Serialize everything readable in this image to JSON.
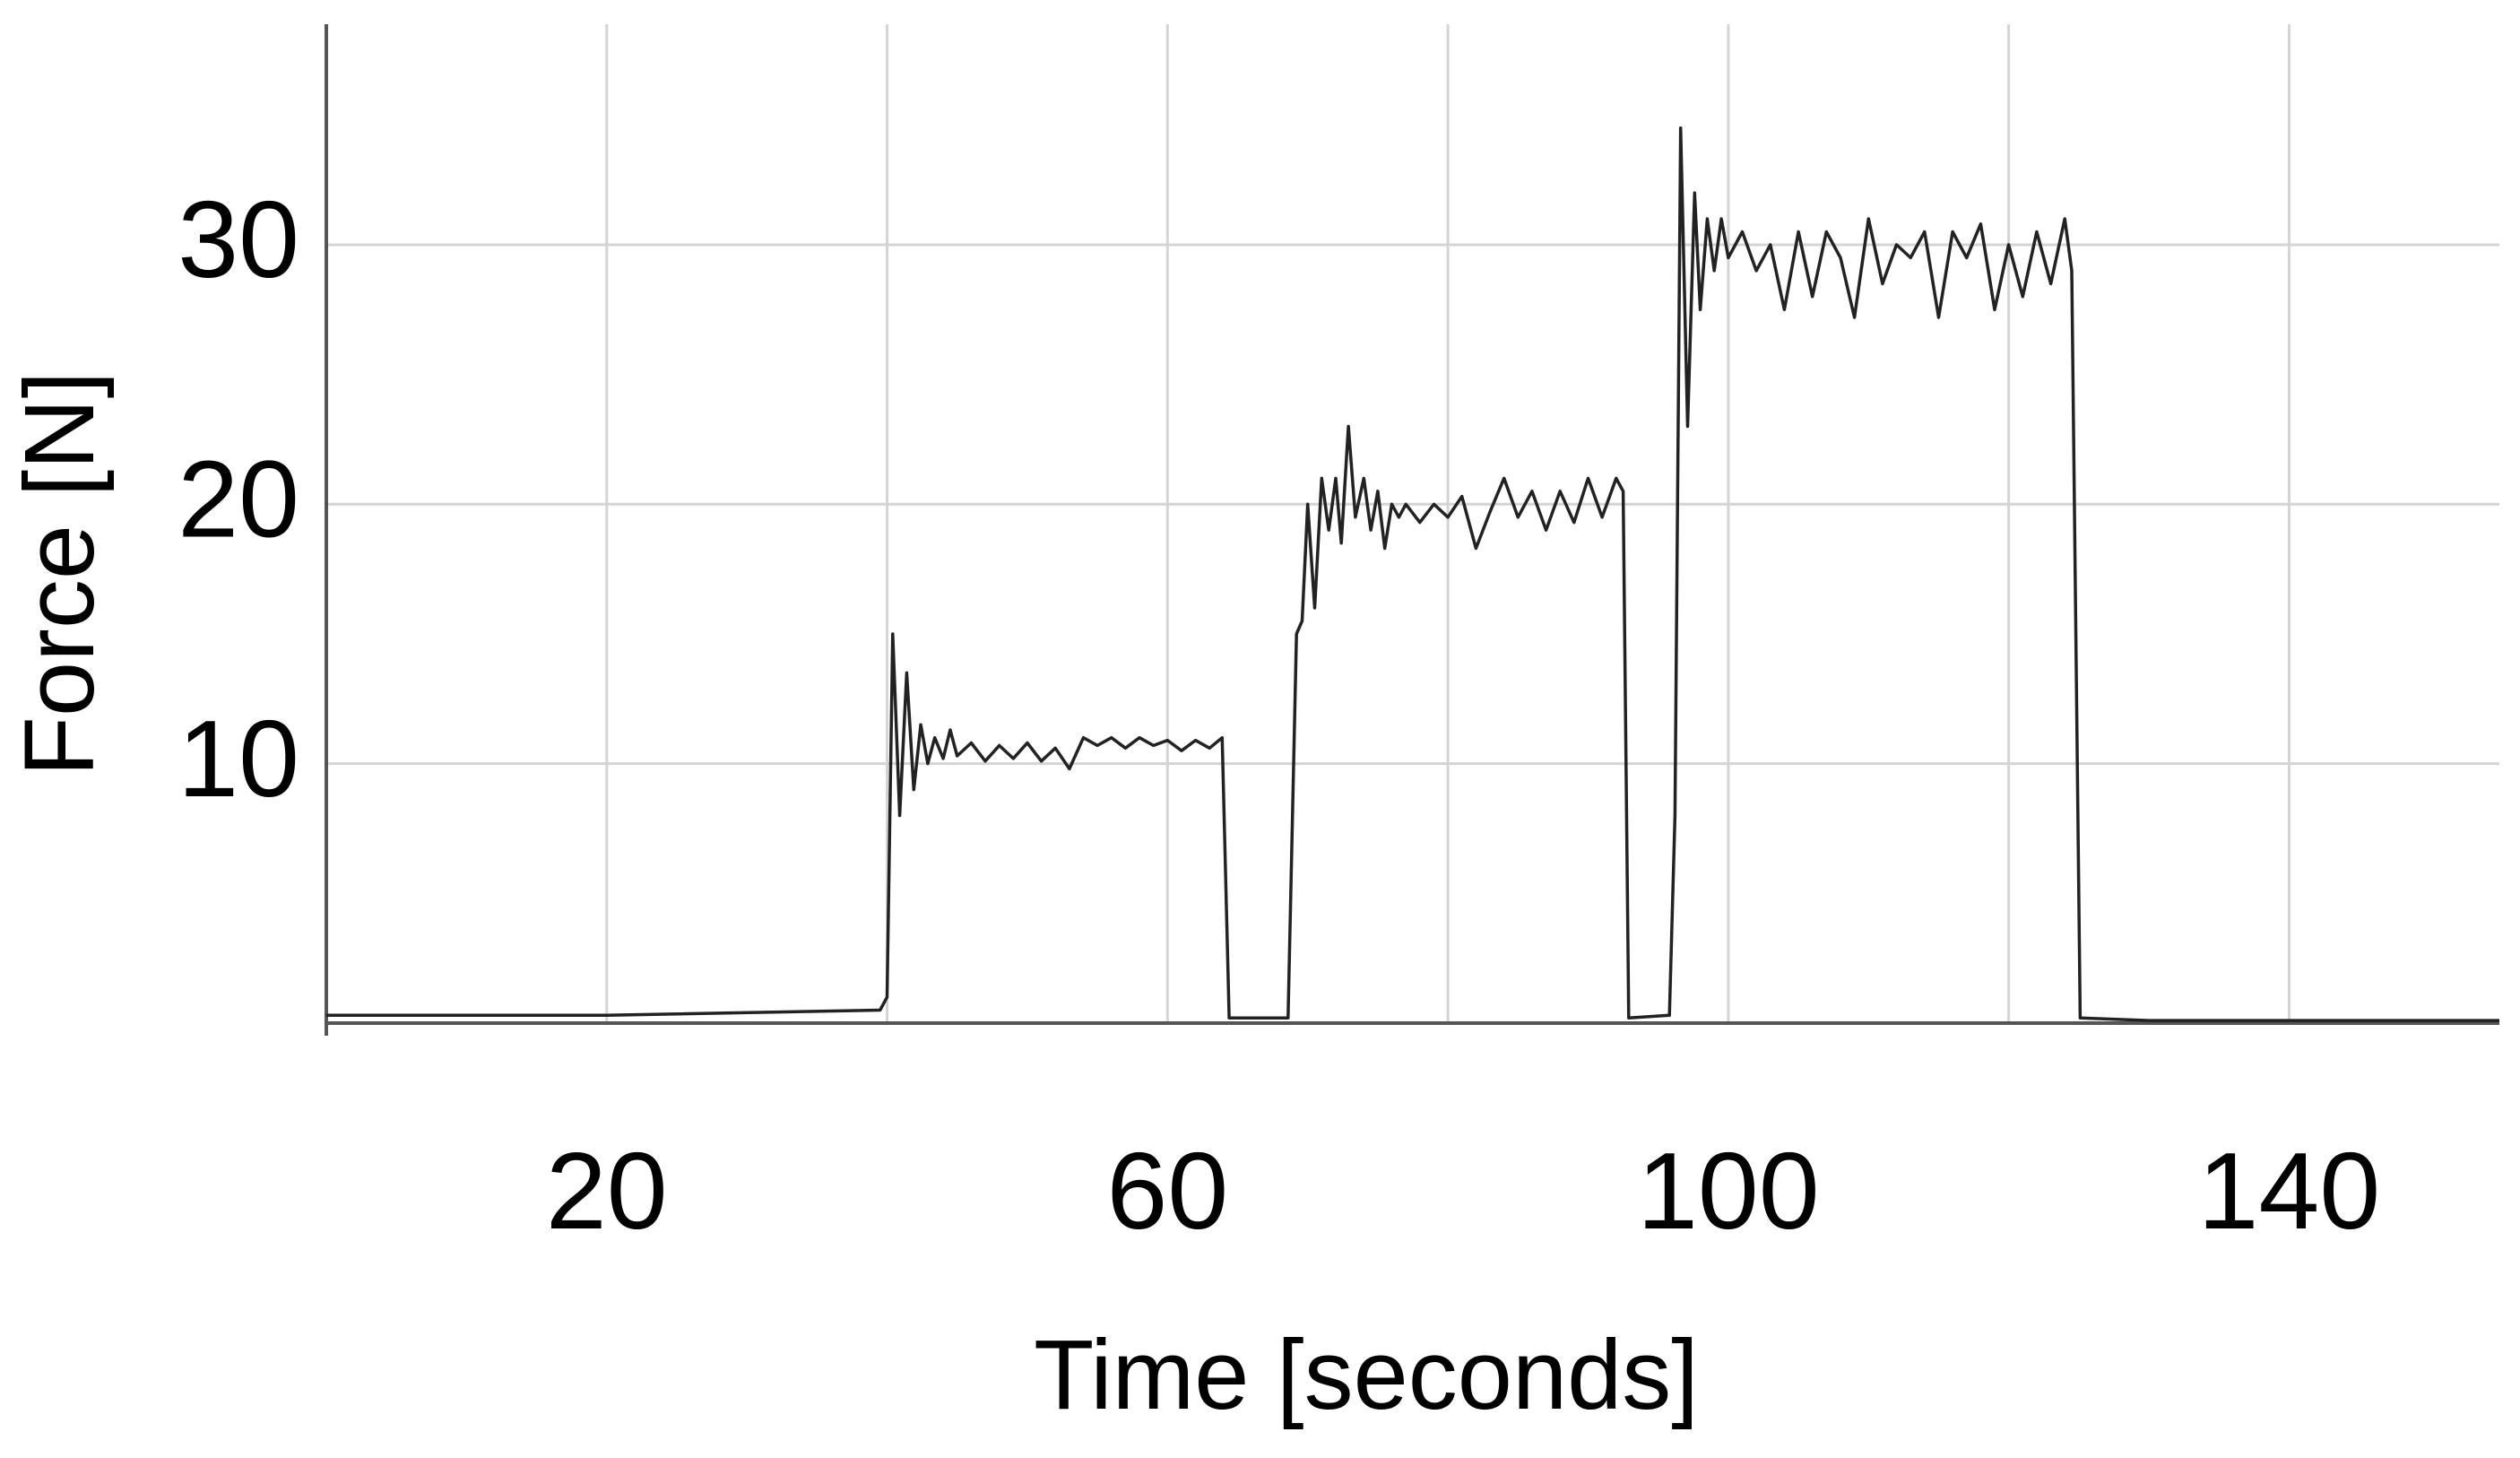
{
  "chart_data": {
    "type": "line",
    "x_label": "Time [seconds]",
    "y_label": "Force [N]",
    "color": "#222222",
    "grid": true,
    "xlim": [
      0,
      155
    ],
    "ylim": [
      0,
      38.5
    ],
    "xticks": [
      20,
      60,
      100,
      140
    ],
    "xgrid": [
      20,
      40,
      60,
      80,
      100,
      120,
      140
    ],
    "yticks": [
      10,
      20,
      30
    ],
    "x": [
      0,
      20,
      39.5,
      40,
      40.4,
      40.9,
      41.4,
      41.9,
      42.4,
      42.9,
      43.4,
      44,
      44.5,
      45,
      46,
      47,
      48,
      49,
      50,
      51,
      52,
      53,
      54,
      55,
      56,
      57,
      58,
      59,
      60,
      61,
      62,
      63,
      63.9,
      64.4,
      68.6,
      69.2,
      69.6,
      70,
      70.5,
      71,
      71.5,
      72,
      72.4,
      72.9,
      73.4,
      74,
      74.5,
      75,
      75.5,
      76,
      76.5,
      77,
      78,
      79,
      80,
      81,
      82,
      83,
      84,
      85,
      86,
      87,
      88,
      89,
      90,
      91,
      92,
      92.5,
      92.9,
      95.8,
      96.2,
      96.6,
      97.1,
      97.6,
      98,
      98.5,
      99,
      99.5,
      100,
      101,
      102,
      103,
      104,
      105,
      106,
      107,
      108,
      109,
      110,
      111,
      112,
      113,
      114,
      115,
      116,
      117,
      118,
      119,
      120,
      121,
      122,
      123,
      124,
      124.5,
      125.1,
      130,
      155
    ],
    "values": [
      0.3,
      0.3,
      0.5,
      1,
      15,
      8,
      13.5,
      9,
      11.5,
      10,
      11,
      10.2,
      11.3,
      10.3,
      10.8,
      10.1,
      10.7,
      10.2,
      10.8,
      10.1,
      10.6,
      9.8,
      11,
      10.7,
      11,
      10.6,
      11,
      10.7,
      10.9,
      10.5,
      10.9,
      10.6,
      11,
      0.2,
      0.2,
      15,
      15.5,
      20,
      16,
      21,
      19,
      21,
      18.5,
      23,
      19.5,
      21,
      19,
      20.5,
      18.3,
      20,
      19.5,
      20,
      19.3,
      20,
      19.5,
      20.3,
      18.3,
      19.7,
      21,
      19.5,
      20.5,
      19,
      20.5,
      19.3,
      21,
      19.5,
      21,
      20.5,
      0.2,
      0.3,
      8,
      34.5,
      23,
      32,
      27.5,
      31,
      29,
      31,
      29.5,
      30.5,
      29,
      30,
      27.5,
      30.5,
      28,
      30.5,
      29.5,
      27.2,
      31,
      28.5,
      30,
      29.5,
      30.5,
      27.2,
      30.5,
      29.5,
      30.8,
      27.5,
      30,
      28,
      30.5,
      28.5,
      31,
      29,
      0.2,
      0.1,
      0.1
    ]
  }
}
